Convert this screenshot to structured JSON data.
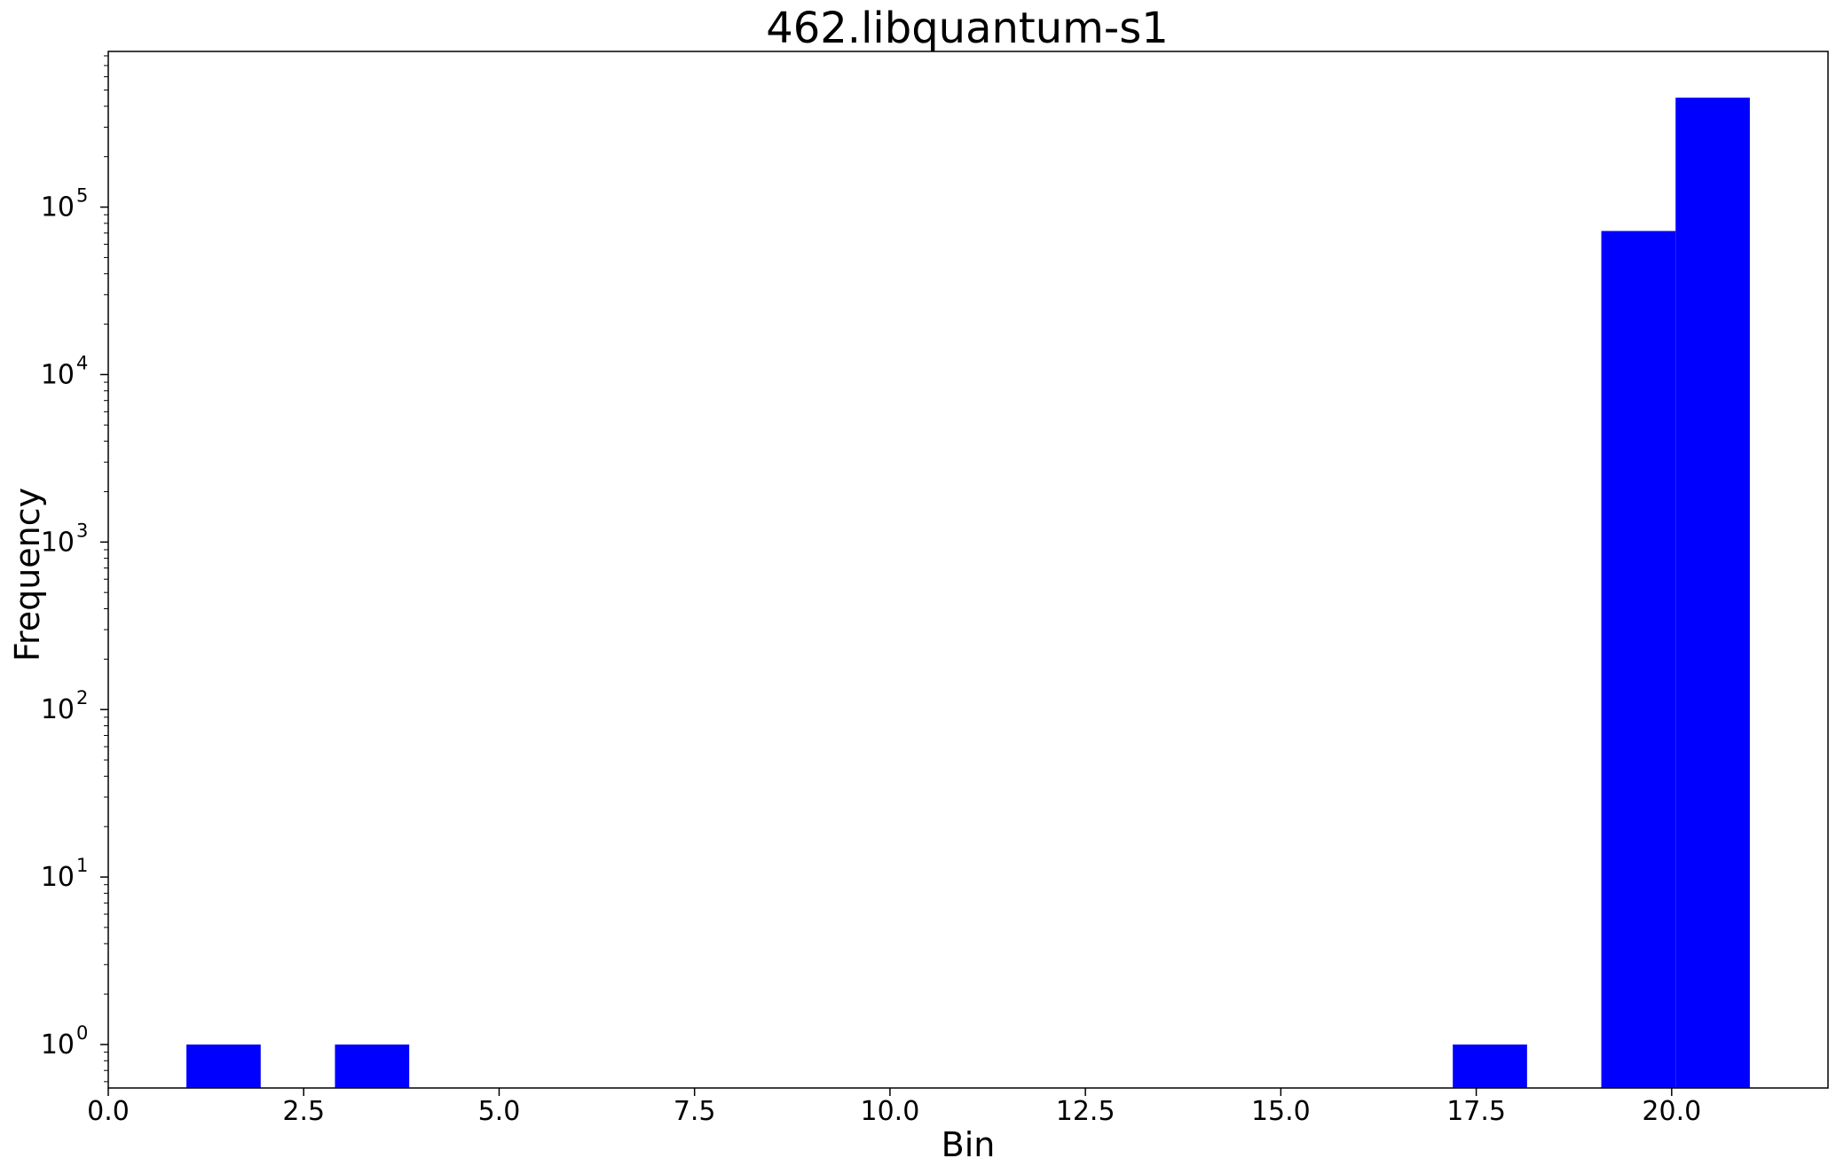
{
  "chart_data": {
    "type": "bar",
    "title": "462.libquantum-s1",
    "xlabel": "Bin",
    "ylabel": "Frequency",
    "xlim": [
      0,
      22
    ],
    "ylim": [
      0.55,
      850000
    ],
    "yscale": "log",
    "x_ticks": [
      0.0,
      2.5,
      5.0,
      7.5,
      10.0,
      12.5,
      15.0,
      17.5,
      20.0
    ],
    "x_tick_labels": [
      "0.0",
      "2.5",
      "5.0",
      "7.5",
      "10.0",
      "12.5",
      "15.0",
      "17.5",
      "20.0"
    ],
    "y_tick_decades": [
      0,
      1,
      2,
      3,
      4,
      5
    ],
    "bar_color": "#0000ff",
    "bins": [
      {
        "start": 1.0,
        "end": 1.95,
        "value": 1
      },
      {
        "start": 2.9,
        "end": 3.85,
        "value": 1
      },
      {
        "start": 17.2,
        "end": 18.15,
        "value": 1
      },
      {
        "start": 19.1,
        "end": 20.05,
        "value": 72000
      },
      {
        "start": 20.05,
        "end": 21.0,
        "value": 450000
      }
    ]
  }
}
